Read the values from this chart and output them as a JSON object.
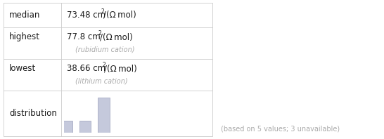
{
  "rows": [
    {
      "label": "median",
      "value_main": "73.48 cm",
      "sup": "2",
      "unit": "/(Ω mol)",
      "sub_label": null
    },
    {
      "label": "highest",
      "value_main": "77.8 cm",
      "sup": "2",
      "unit": "/(Ω mol)",
      "sub_label": "(rubidium cation)"
    },
    {
      "label": "lowest",
      "value_main": "38.66 cm",
      "sup": "2",
      "unit": "/(Ω mol)",
      "sub_label": "(lithium cation)"
    },
    {
      "label": "distribution",
      "value_main": null,
      "sup": null,
      "unit": null,
      "sub_label": null
    }
  ],
  "footer": "(based on 5 values; 3 unavailable)",
  "bar_values": [
    1,
    1,
    3
  ],
  "bar_color": "#c5c9dc",
  "bar_edge_color": "#9da2bc",
  "table_line_color": "#cccccc",
  "text_color": "#1a1a1a",
  "sub_label_color": "#aaaaaa",
  "bg_color": "#ffffff",
  "fig_width": 5.46,
  "fig_height": 1.98
}
